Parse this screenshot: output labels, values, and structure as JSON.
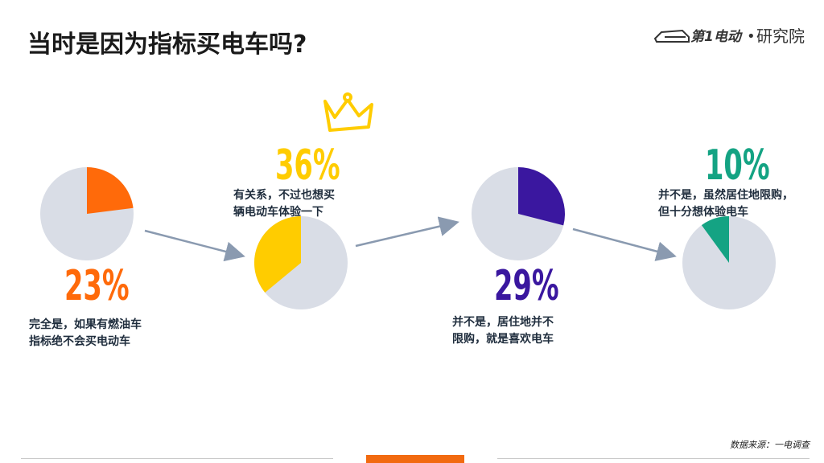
{
  "title": "当时是因为指标买电车吗?",
  "logo": {
    "brand": "第1电动",
    "dot": "•",
    "suffix": "研究院"
  },
  "source": "数据来源：一电调查",
  "colors": {
    "pie_bg": "#d9dde6",
    "arrow": "#8a9ab0"
  },
  "chart_data": {
    "type": "pie",
    "groups": [
      {
        "value": 23,
        "label": "23%",
        "description": [
          "完全是，如果有燃油车",
          "指标绝不会买电动车"
        ],
        "color": "#ff6a0a"
      },
      {
        "value": 36,
        "label": "36%",
        "description": [
          "有关系，不过也想买",
          "辆电动车体验一下"
        ],
        "color": "#ffcc00"
      },
      {
        "value": 29,
        "label": "29%",
        "description": [
          "并不是，居住地并不",
          "限购，就是喜欢电车"
        ],
        "color": "#3a179f"
      },
      {
        "value": 10,
        "label": "10%",
        "description": [
          "并不是，虽然居住地限购，",
          "但十分想体验电车"
        ],
        "color": "#14a383"
      }
    ]
  }
}
